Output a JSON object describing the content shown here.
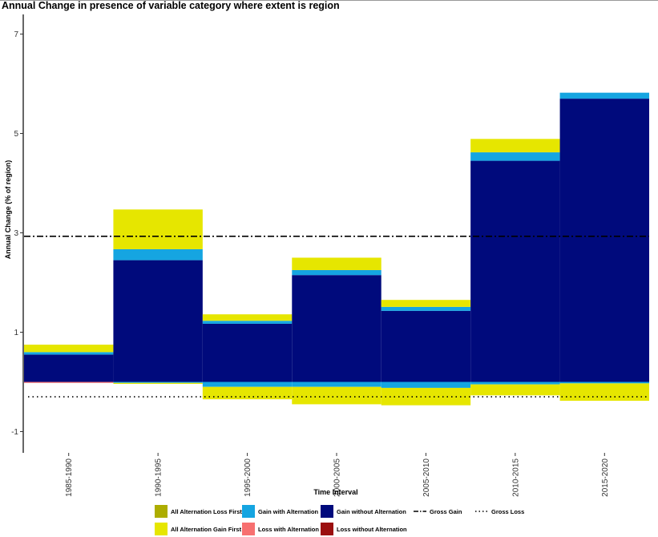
{
  "chart_data": {
    "type": "bar",
    "title": "Annual Change in presence of variable category where extent is region",
    "xlabel": "Time Interval",
    "ylabel": "Annual Change (% of region)",
    "categories": [
      "1985-1990",
      "1990-1995",
      "1995-2000",
      "2000-2005",
      "2005-2010",
      "2010-2015",
      "2015-2020"
    ],
    "yticks": [
      "-1",
      "1",
      "3",
      "5",
      "7"
    ],
    "ylim": [
      -1.4,
      7.5
    ],
    "series": [
      {
        "name": "Gain without Alternation",
        "color": "#000a7c",
        "values": [
          0.55,
          2.45,
          1.17,
          2.15,
          1.43,
          4.45,
          5.7
        ]
      },
      {
        "name": "Gain with Alternation",
        "color": "#15a5e1",
        "values": [
          0.05,
          0.22,
          0.06,
          0.1,
          0.08,
          0.17,
          0.12
        ]
      },
      {
        "name": "All Alternation Gain First",
        "color": "#e6e600",
        "values": [
          0.15,
          0.8,
          0.13,
          0.25,
          0.14,
          0.27,
          0.0
        ]
      },
      {
        "name": "Loss without Alternation",
        "color": "#9b1010",
        "values": [
          0,
          0,
          0,
          0,
          0,
          0,
          0
        ]
      },
      {
        "name": "Loss with Alternation",
        "color": "#f77070",
        "values": [
          -0.02,
          0,
          0,
          0,
          0,
          0,
          0
        ]
      },
      {
        "name": "Gain with Alternation",
        "color": "#15a5e1",
        "values": [
          0,
          -0.02,
          -0.1,
          -0.1,
          -0.12,
          -0.05,
          -0.03
        ]
      },
      {
        "name": "All Alternation Gain First",
        "color": "#e6e600",
        "values": [
          0,
          -0.02,
          -0.25,
          -0.35,
          -0.35,
          -0.22,
          -0.35
        ]
      }
    ],
    "gross_gain": 2.93,
    "gross_loss": -0.3,
    "legend_position": "bottom",
    "legend": [
      {
        "label": "All Alternation Loss First",
        "color": "#adad00",
        "kind": "box"
      },
      {
        "label": "Gain with Alternation",
        "color": "#15a5e1",
        "kind": "box"
      },
      {
        "label": "Gain without Alternation",
        "color": "#000a7c",
        "kind": "box"
      },
      {
        "label": "Gross Gain",
        "color": "#000000",
        "kind": "dashdot"
      },
      {
        "label": "Gross Loss",
        "color": "#000000",
        "kind": "dotted"
      },
      {
        "label": "All Alternation Gain First",
        "color": "#e6e600",
        "kind": "box"
      },
      {
        "label": "Loss with Alternation",
        "color": "#f77070",
        "kind": "box"
      },
      {
        "label": "Loss without Alternation",
        "color": "#9b1010",
        "kind": "box"
      }
    ]
  }
}
